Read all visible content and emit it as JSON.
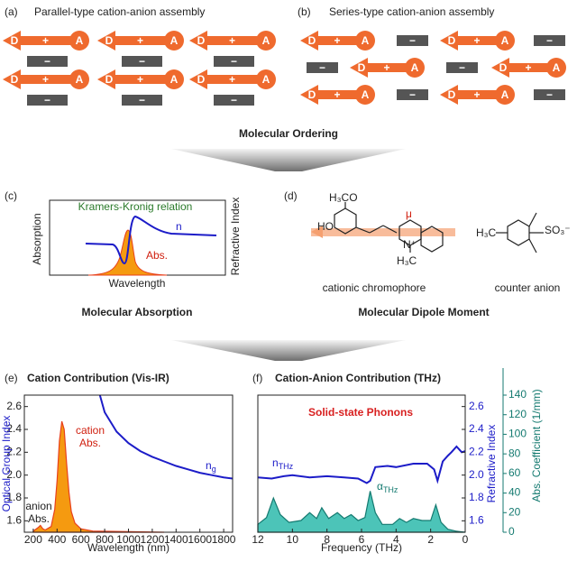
{
  "figure": {
    "panel_a": {
      "label": "(a)",
      "title": "Parallel-type cation-anion assembly"
    },
    "panel_b": {
      "label": "(b)",
      "title": "Series-type cation-anion assembly"
    },
    "donor": "D",
    "acceptor": "A",
    "plus": "+",
    "minus": "−",
    "ordering": "Molecular Ordering",
    "panel_c": {
      "label": "(c)",
      "relation": "Kramers-Kronig relation",
      "y_label": "Absorption",
      "y2_label": "Refractive Index",
      "x_label": "Wavelength",
      "n": "n",
      "abs": "Abs.",
      "caption": "Molecular Absorption"
    },
    "panel_d": {
      "label": "(d)",
      "mu": "μ",
      "methoxy": "H₃CO",
      "hydroxy": "HO",
      "nitrogen": "N⁺",
      "methyl_n": "H₃C",
      "methyl_anion": "H₃C",
      "sulfonate": "SO₃⁻",
      "cation": "cationic chromophore",
      "anion": "counter anion",
      "caption": "Molecular Dipole Moment"
    }
  },
  "chart_data": [
    {
      "type": "line",
      "label": "(e)",
      "title": "Cation Contribution (Vis-IR)",
      "x_label": "Wavelength (nm)",
      "y_label": "Optical Group Index",
      "xlim": [
        125,
        1875
      ],
      "xticks": [
        200,
        400,
        600,
        800,
        1000,
        1200,
        1400,
        1600,
        1800
      ],
      "ylim": [
        1.5,
        2.7
      ],
      "yticks": [
        1.6,
        1.8,
        {
          "value": 2,
          "label": "2.0"
        },
        2.2,
        2.4,
        2.6
      ],
      "annotations": {
        "ng": {
          "base": "n",
          "sub": "g"
        },
        "cation_abs": [
          "cation",
          "Abs."
        ],
        "anion_abs": [
          "anion",
          "Abs."
        ]
      },
      "series": [
        {
          "color": "#1c1cc8",
          "fill": false,
          "x": [
            760,
            800,
            900,
            1000,
            1100,
            1200,
            1300,
            1400,
            1500,
            1600,
            1700,
            1800,
            1875
          ],
          "values": [
            2.7,
            2.55,
            2.38,
            2.28,
            2.21,
            2.16,
            2.12,
            2.08,
            2.05,
            2.02,
            2.0,
            1.98,
            1.97
          ]
        },
        {
          "color": "#e8401c",
          "fill": "#f59a10",
          "x": [
            200,
            240,
            260,
            280,
            300,
            350,
            380,
            400,
            420,
            440,
            460,
            480,
            500,
            520,
            550,
            600,
            700,
            1300
          ],
          "values": [
            1.51,
            1.54,
            1.56,
            1.53,
            1.52,
            1.55,
            1.7,
            1.95,
            2.3,
            2.47,
            2.4,
            2.1,
            1.85,
            1.68,
            1.58,
            1.53,
            1.51,
            1.5
          ]
        }
      ]
    },
    {
      "type": "line",
      "label": "(f)",
      "title": "Cation-Anion Contribution (THz)",
      "annotation": "Solid-state Phonons",
      "x_label": "Frequency (THz)",
      "y_label": "Refractive Index",
      "y2_label": "Abs. Coefficient (1/mm)",
      "xlim": [
        12,
        0
      ],
      "xticks": [
        12,
        10,
        8,
        6,
        4,
        2,
        0
      ],
      "ylim": [
        1.5,
        2.7
      ],
      "yticks": [
        1.6,
        1.8,
        {
          "value": 2,
          "label": "2.0"
        },
        2.2,
        2.4,
        2.6
      ],
      "y2lim": [
        0,
        140
      ],
      "y2ticks": [
        0,
        20,
        40,
        60,
        80,
        100,
        120,
        140
      ],
      "annotations": {
        "n": {
          "base": "n",
          "sub": "THz"
        },
        "alpha": {
          "base": "α",
          "sub": "THz"
        }
      },
      "series": [
        {
          "color": "#1c1cc8",
          "fill": false,
          "x": [
            12,
            11.2,
            10.5,
            10,
            9,
            8,
            7,
            6.2,
            5.7,
            5.5,
            5.2,
            4.5,
            4,
            3,
            2.2,
            1.8,
            1.6,
            1.3,
            1,
            0.8,
            0.5,
            0.2,
            0
          ],
          "values": [
            1.98,
            1.97,
            1.99,
            2.0,
            1.98,
            1.99,
            1.98,
            1.97,
            1.93,
            1.95,
            2.07,
            2.08,
            2.07,
            2.1,
            2.1,
            2.05,
            1.95,
            2.12,
            2.17,
            2.2,
            2.25,
            2.2,
            2.21
          ]
        },
        {
          "color": "#147a70",
          "fill": "#4cc4b8",
          "axis": "y2",
          "x": [
            12,
            11.5,
            11.1,
            10.7,
            10.2,
            9.5,
            9,
            8.6,
            8.3,
            7.9,
            7.4,
            7,
            6.6,
            6.2,
            5.8,
            5.5,
            5.2,
            4.8,
            4.2,
            3.8,
            3.4,
            3,
            2.5,
            2,
            1.7,
            1.4,
            1,
            0.5,
            0
          ],
          "values": [
            8,
            15,
            35,
            18,
            10,
            12,
            20,
            14,
            25,
            14,
            20,
            14,
            18,
            12,
            15,
            42,
            20,
            8,
            8,
            14,
            10,
            14,
            12,
            12,
            28,
            10,
            3,
            1,
            0
          ]
        }
      ]
    }
  ]
}
